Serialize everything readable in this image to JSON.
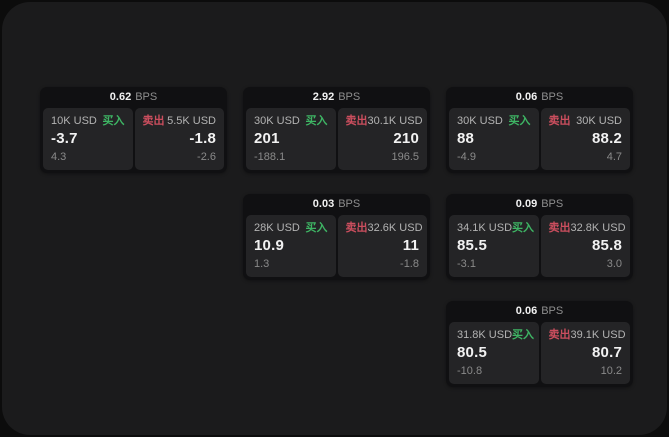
{
  "theme": {
    "page_bg": "#0c0c0c",
    "frame_bg": "#1b1b1c",
    "card_bg": "#101012",
    "tile_bg": "#242426",
    "green": "#3eb564",
    "red": "#cb4e5e"
  },
  "labels": {
    "bps": "BPS",
    "buy": "买入",
    "sell": "卖出"
  },
  "cards": [
    {
      "bps": "0.62",
      "buy": {
        "amount": "10K USD",
        "value": "-3.7",
        "delta": "4.3"
      },
      "sell": {
        "amount": "5.5K USD",
        "value": "-1.8",
        "delta": "-2.6"
      }
    },
    {
      "bps": "2.92",
      "buy": {
        "amount": "30K USD",
        "value": "201",
        "delta": "-188.1"
      },
      "sell": {
        "amount": "30.1K USD",
        "value": "210",
        "delta": "196.5"
      }
    },
    {
      "bps": "0.06",
      "buy": {
        "amount": "30K USD",
        "value": "88",
        "delta": "-4.9"
      },
      "sell": {
        "amount": "30K USD",
        "value": "88.2",
        "delta": "4.7"
      }
    },
    {
      "bps": "0.03",
      "buy": {
        "amount": "28K USD",
        "value": "10.9",
        "delta": "1.3"
      },
      "sell": {
        "amount": "32.6K USD",
        "value": "11",
        "delta": "-1.8"
      }
    },
    {
      "bps": "0.09",
      "buy": {
        "amount": "34.1K USD",
        "value": "85.5",
        "delta": "-3.1"
      },
      "sell": {
        "amount": "32.8K USD",
        "value": "85.8",
        "delta": "3.0"
      }
    },
    {
      "bps": "0.06",
      "buy": {
        "amount": "31.8K USD",
        "value": "80.5",
        "delta": "-10.8"
      },
      "sell": {
        "amount": "39.1K USD",
        "value": "80.7",
        "delta": "10.2"
      }
    }
  ]
}
